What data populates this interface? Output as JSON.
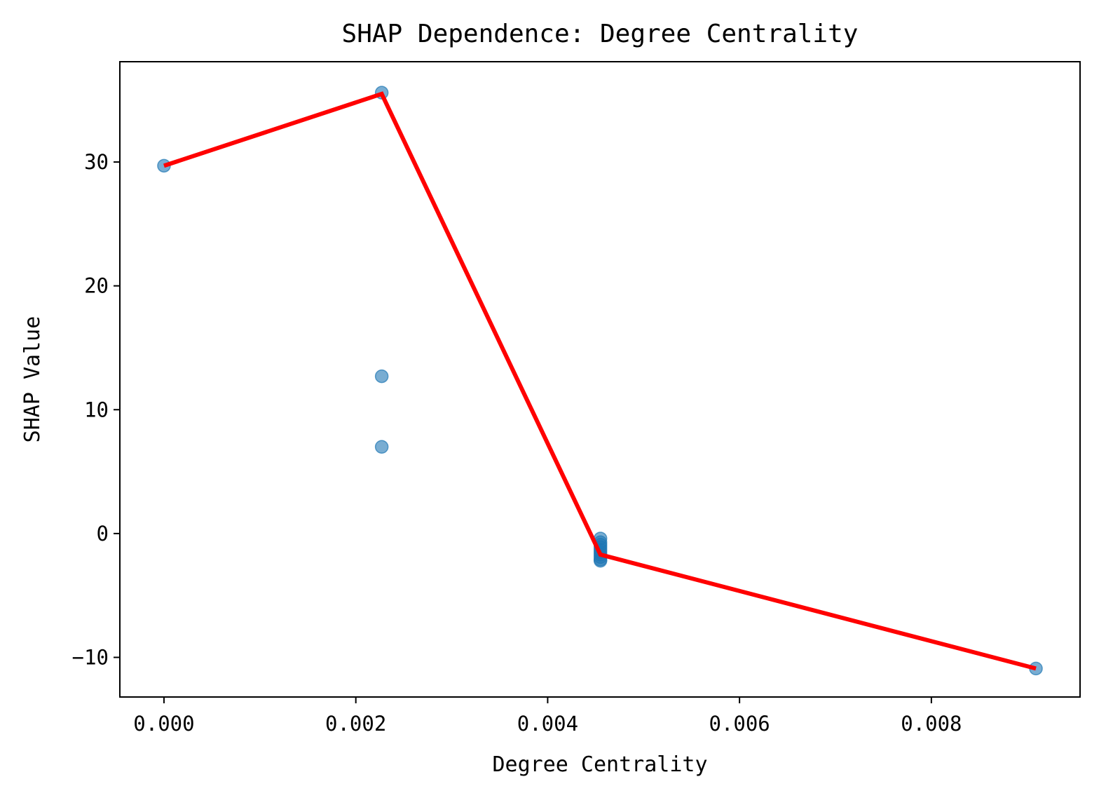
{
  "chart_data": {
    "type": "scatter",
    "title": "SHAP Dependence: Degree Centrality",
    "xlabel": "Degree Centrality",
    "ylabel": "SHAP Value",
    "xlim": [
      -0.00046,
      0.00955
    ],
    "ylim": [
      -13.2,
      38.1
    ],
    "xticks": [
      0.0,
      0.002,
      0.004,
      0.006,
      0.008
    ],
    "xtick_labels": [
      "0.000",
      "0.002",
      "0.004",
      "0.006",
      "0.008"
    ],
    "yticks": [
      -10,
      0,
      10,
      20,
      30
    ],
    "ytick_labels": [
      "−10",
      "0",
      "10",
      "20",
      "30"
    ],
    "grid": false,
    "legend": "none",
    "series": [
      {
        "kind": "scatter",
        "color": "#1f77b4",
        "points": [
          {
            "x": 0.0,
            "y": 29.7
          },
          {
            "x": 0.00227,
            "y": 35.6
          },
          {
            "x": 0.00227,
            "y": 12.7
          },
          {
            "x": 0.00227,
            "y": 7.0
          },
          {
            "x": 0.00455,
            "y": -0.4
          },
          {
            "x": 0.00455,
            "y": -0.7
          },
          {
            "x": 0.00455,
            "y": -0.9
          },
          {
            "x": 0.00455,
            "y": -1.1
          },
          {
            "x": 0.00455,
            "y": -1.3
          },
          {
            "x": 0.00455,
            "y": -1.5
          },
          {
            "x": 0.00455,
            "y": -1.7
          },
          {
            "x": 0.00455,
            "y": -1.9
          },
          {
            "x": 0.00455,
            "y": -2.1
          },
          {
            "x": 0.00455,
            "y": -2.2
          },
          {
            "x": 0.00909,
            "y": -10.9
          }
        ]
      },
      {
        "kind": "line",
        "color": "#ff0000",
        "points": [
          {
            "x": 0.0,
            "y": 29.7
          },
          {
            "x": 0.00227,
            "y": 35.5
          },
          {
            "x": 0.00455,
            "y": -1.7
          },
          {
            "x": 0.00909,
            "y": -10.9
          }
        ]
      }
    ]
  }
}
